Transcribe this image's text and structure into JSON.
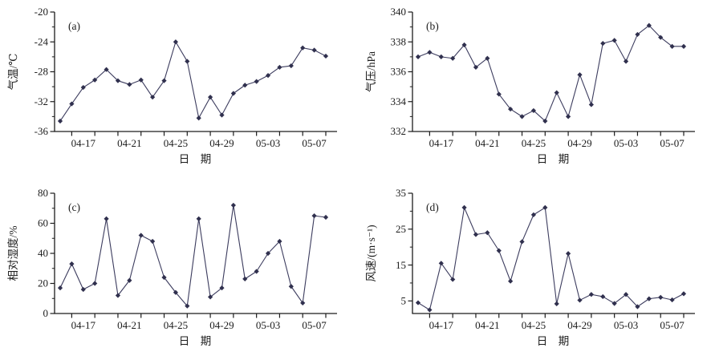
{
  "figure": {
    "background": "#ffffff",
    "line_color": "#3c3c5e",
    "marker_color": "#30304e",
    "axis_color": "#1c1c1c",
    "text_color": "#1c1c1c",
    "x_axis_title": "日　期",
    "visible_x_tick_labels": [
      "04-17",
      "04-21",
      "04-25",
      "04-29",
      "05-03",
      "05-07"
    ]
  },
  "chart_data": [
    {
      "type": "line",
      "panel_label": "(a)",
      "ylabel": "气温/℃",
      "xlabel": "日　期",
      "marker": "diamond",
      "grid": false,
      "legend": "none",
      "x": [
        "04-15",
        "04-16",
        "04-17",
        "04-18",
        "04-19",
        "04-20",
        "04-21",
        "04-22",
        "04-23",
        "04-24",
        "04-25",
        "04-26",
        "04-27",
        "04-28",
        "04-29",
        "04-30",
        "05-01",
        "05-02",
        "05-03",
        "05-04",
        "05-05",
        "05-06",
        "05-07",
        "05-08"
      ],
      "values": [
        -34.6,
        -32.3,
        -30.1,
        -29.1,
        -27.7,
        -29.2,
        -29.7,
        -29.1,
        -31.4,
        -29.2,
        -24.0,
        -26.6,
        -34.2,
        -31.4,
        -33.8,
        -30.9,
        -29.8,
        -29.3,
        -28.5,
        -27.4,
        -27.2,
        -24.8,
        -25.1,
        -25.9
      ],
      "ylim": [
        -36,
        -20
      ],
      "yticks": [
        -36,
        -32,
        -28,
        -24,
        -20
      ],
      "x_label_indices": [
        2,
        6,
        10,
        14,
        18,
        22
      ],
      "x_labels": [
        "04-17",
        "04-21",
        "04-25",
        "04-29",
        "05-03",
        "05-07"
      ]
    },
    {
      "type": "line",
      "panel_label": "(b)",
      "ylabel": "气压/hPa",
      "xlabel": "日　期",
      "marker": "diamond",
      "grid": false,
      "legend": "none",
      "x": [
        "04-15",
        "04-16",
        "04-17",
        "04-18",
        "04-19",
        "04-20",
        "04-21",
        "04-22",
        "04-23",
        "04-24",
        "04-25",
        "04-26",
        "04-27",
        "04-28",
        "04-29",
        "04-30",
        "05-01",
        "05-02",
        "05-03",
        "05-04",
        "05-05",
        "05-06",
        "05-07",
        "05-08"
      ],
      "values": [
        337.0,
        337.3,
        337.0,
        336.9,
        337.8,
        336.3,
        336.9,
        334.5,
        333.5,
        333.0,
        333.4,
        332.7,
        334.6,
        333.0,
        335.8,
        333.8,
        337.9,
        338.1,
        336.7,
        338.5,
        339.1,
        338.3,
        337.7,
        337.7
      ],
      "ylim": [
        332,
        340
      ],
      "yticks": [
        332,
        334,
        336,
        338,
        340
      ],
      "x_label_indices": [
        2,
        6,
        10,
        14,
        18,
        22
      ],
      "x_labels": [
        "04-17",
        "04-21",
        "04-25",
        "04-29",
        "05-03",
        "05-07"
      ]
    },
    {
      "type": "line",
      "panel_label": "(c)",
      "ylabel": "相对湿度/%",
      "xlabel": "日　期",
      "marker": "diamond",
      "grid": false,
      "legend": "none",
      "x": [
        "04-15",
        "04-16",
        "04-17",
        "04-18",
        "04-19",
        "04-20",
        "04-21",
        "04-22",
        "04-23",
        "04-24",
        "04-25",
        "04-26",
        "04-27",
        "04-28",
        "04-29",
        "04-30",
        "05-01",
        "05-02",
        "05-03",
        "05-04",
        "05-05",
        "05-06",
        "05-07",
        "05-08"
      ],
      "values": [
        17,
        33,
        16,
        20,
        63,
        12,
        22,
        52,
        48,
        24,
        14,
        5,
        63,
        11,
        17,
        72,
        23,
        28,
        40,
        48,
        18,
        7,
        65,
        64
      ],
      "ylim": [
        0,
        80
      ],
      "yticks": [
        0,
        20,
        40,
        60,
        80
      ],
      "x_label_indices": [
        2,
        6,
        10,
        14,
        18,
        22
      ],
      "x_labels": [
        "04-17",
        "04-21",
        "04-25",
        "04-29",
        "05-03",
        "05-07"
      ]
    },
    {
      "type": "line",
      "panel_label": "(d)",
      "ylabel": "风速/(m·s⁻¹)",
      "xlabel": "日　期",
      "marker": "diamond",
      "grid": false,
      "legend": "none",
      "x": [
        "04-15",
        "04-16",
        "04-17",
        "04-18",
        "04-19",
        "04-20",
        "04-21",
        "04-22",
        "04-23",
        "04-24",
        "04-25",
        "04-26",
        "04-27",
        "04-28",
        "04-29",
        "04-30",
        "05-01",
        "05-02",
        "05-03",
        "05-04",
        "05-05",
        "05-06",
        "05-07",
        "05-08"
      ],
      "values": [
        4.5,
        2.5,
        15.5,
        11.0,
        31.0,
        23.5,
        24.0,
        19.0,
        10.5,
        21.5,
        29.0,
        31.0,
        4.2,
        18.2,
        5.2,
        6.8,
        6.2,
        4.3,
        6.8,
        3.4,
        5.6,
        6.0,
        5.3,
        7.0
      ],
      "ylim": [
        1.5,
        35
      ],
      "yticks": [
        5,
        15,
        25,
        35
      ],
      "x_label_indices": [
        2,
        6,
        10,
        14,
        18,
        22
      ],
      "x_labels": [
        "04-17",
        "04-21",
        "04-25",
        "04-29",
        "05-03",
        "05-07"
      ]
    }
  ]
}
